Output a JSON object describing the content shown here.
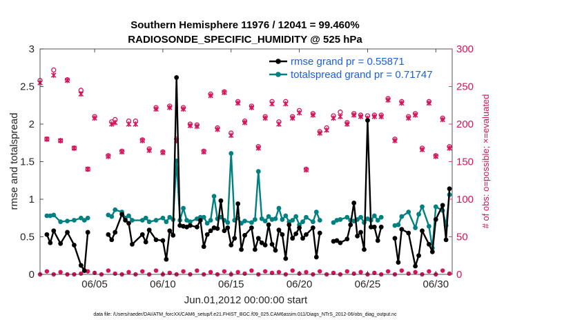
{
  "chart_data": {
    "type": "line",
    "title": "Southern Hemisphere 11976 / 12041 = 99.460%",
    "subtitle": "RADIOSONDE_SPECIFIC_HUMIDITY @ 525 hPa",
    "xlabel": "Jun.01,2012 00:00:00 start",
    "ylabel": "rmse and totalspread",
    "y2label": "# of obs: o=possible; ×=evaluated",
    "footer": "data file: /Users/raeder/DAI/ATM_forcXX/CAM6_setup/f.e21.FHIST_BGC.f09_025.CAM6assim.011/Diags_NTrS_2012-06/obs_diag_output.nc",
    "xlim": [
      1,
      31.2
    ],
    "ylim": [
      0,
      3
    ],
    "y2lim": [
      0,
      300
    ],
    "xticks": [
      5,
      10,
      15,
      20,
      25,
      30
    ],
    "xtick_labels": [
      "06/05",
      "06/10",
      "06/15",
      "06/20",
      "06/25",
      "06/30"
    ],
    "yticks": [
      0,
      0.5,
      1,
      1.5,
      2,
      2.5,
      3
    ],
    "ytick_labels": [
      "0",
      "0.5",
      "1",
      "1.5",
      "2",
      "2.5",
      "3"
    ],
    "y2ticks": [
      0,
      50,
      100,
      150,
      200,
      250,
      300
    ],
    "y2tick_labels": [
      "0",
      "50",
      "100",
      "150",
      "200",
      "250",
      "300"
    ],
    "legend_position": "top-right",
    "series": [
      {
        "name": "rmse",
        "legend": "rmse grand pr = 0.55871",
        "color": "#000000",
        "x": [
          1.5,
          1.75,
          2.0,
          2.5,
          3.0,
          3.5,
          4.0,
          4.25,
          4.5,
          6.0,
          6.25,
          6.5,
          7.0,
          7.25,
          7.5,
          7.75,
          8.5,
          8.75,
          9.0,
          9.5,
          10.0,
          10.25,
          10.5,
          10.75,
          11.0,
          11.25,
          11.5,
          11.75,
          12.0,
          12.5,
          12.75,
          13.0,
          13.25,
          13.5,
          13.75,
          14.0,
          14.25,
          14.5,
          14.75,
          15.0,
          15.25,
          15.5,
          15.75,
          16.0,
          16.5,
          16.75,
          17.0,
          17.25,
          17.5,
          17.75,
          18.0,
          18.25,
          18.5,
          18.75,
          19.0,
          19.25,
          19.5,
          19.75,
          20.0,
          20.25,
          20.5,
          21.0,
          21.25,
          21.5,
          22.5,
          22.75,
          23.0,
          23.5,
          23.75,
          24.0,
          24.25,
          24.5,
          24.75,
          25.0,
          25.25,
          25.5,
          25.75,
          26.0,
          27.0,
          27.25,
          27.5,
          28.0,
          28.5,
          28.75,
          29.0,
          29.5,
          29.75,
          30.0,
          30.5,
          30.75,
          31.0
        ],
        "y": [
          0.53,
          0.42,
          0.58,
          0.41,
          0.56,
          0.39,
          0.12,
          0.05,
          0.56,
          0.53,
          0.46,
          0.56,
          0.8,
          0.72,
          0.68,
          0.4,
          0.53,
          0.43,
          0.59,
          0.46,
          0.45,
          0.2,
          0.58,
          0.52,
          2.62,
          0.65,
          0.64,
          0.63,
          0.65,
          0.63,
          0.72,
          0.37,
          0.53,
          0.58,
          0.62,
          0.61,
          0.98,
          0.58,
          0.62,
          0.39,
          0.48,
          0.94,
          0.33,
          0.52,
          0.62,
          0.33,
          0.48,
          0.42,
          0.39,
          0.66,
          0.4,
          0.32,
          0.59,
          0.53,
          0.21,
          0.66,
          0.48,
          0.54,
          0.62,
          0.48,
          0.53,
          0.62,
          0.23,
          0.55,
          0.44,
          0.45,
          0.42,
          0.47,
          0.66,
          0.95,
          0.51,
          0.56,
          0.33,
          2.05,
          0.63,
          0.63,
          0.45,
          0.63,
          0.48,
          0.16,
          0.6,
          0.55,
          0.11,
          0.25,
          0.58,
          0.4,
          0.3,
          0.73,
          0.92,
          0.46,
          1.14
        ]
      },
      {
        "name": "totalspread",
        "legend": "totalspread grand pr = 0.71747",
        "color": "#008080",
        "x": [
          1.5,
          1.75,
          2.0,
          2.5,
          3.0,
          3.5,
          4.0,
          4.25,
          4.5,
          6.0,
          6.25,
          6.5,
          7.0,
          7.25,
          7.5,
          7.75,
          8.5,
          8.75,
          9.0,
          9.5,
          10.0,
          10.25,
          10.5,
          10.75,
          11.0,
          11.25,
          11.5,
          11.75,
          12.0,
          12.5,
          12.75,
          13.0,
          13.25,
          13.5,
          13.75,
          14.0,
          14.25,
          14.5,
          14.75,
          15.0,
          15.25,
          15.5,
          15.75,
          16.0,
          16.5,
          16.75,
          17.0,
          17.25,
          17.5,
          17.75,
          18.0,
          18.25,
          18.5,
          18.75,
          19.0,
          19.25,
          19.5,
          19.75,
          20.0,
          20.25,
          20.5,
          21.0,
          21.25,
          21.5,
          22.5,
          22.75,
          23.0,
          23.5,
          23.75,
          24.0,
          24.25,
          24.5,
          24.75,
          25.0,
          25.25,
          25.5,
          25.75,
          26.0,
          27.0,
          27.25,
          27.5,
          28.0,
          28.5,
          28.75,
          29.0,
          29.5,
          29.75,
          30.0,
          30.5,
          30.75,
          31.0
        ],
        "y": [
          0.78,
          0.78,
          0.79,
          0.7,
          0.71,
          0.72,
          0.75,
          0.72,
          0.75,
          0.79,
          0.77,
          0.86,
          0.83,
          0.75,
          0.78,
          0.72,
          0.72,
          0.75,
          0.7,
          0.72,
          0.75,
          0.7,
          0.76,
          0.73,
          1.51,
          0.72,
          0.88,
          0.72,
          0.7,
          0.74,
          0.76,
          0.76,
          0.68,
          0.72,
          1.04,
          0.74,
          0.76,
          0.72,
          0.69,
          1.61,
          0.72,
          0.75,
          0.68,
          0.71,
          0.69,
          0.73,
          1.37,
          0.74,
          0.71,
          0.77,
          0.73,
          0.74,
          0.88,
          0.73,
          0.78,
          0.7,
          0.72,
          0.77,
          0.66,
          0.7,
          0.76,
          0.7,
          0.83,
          0.72,
          0.69,
          0.72,
          0.73,
          0.76,
          0.72,
          0.71,
          0.73,
          0.76,
          0.69,
          0.74,
          0.72,
          0.78,
          0.72,
          0.76,
          0.65,
          0.66,
          0.77,
          0.83,
          0.62,
          0.8,
          0.9,
          0.64,
          0.35,
          0.9,
          0.85,
          0.65,
          1.06
        ]
      },
      {
        "name": "obs possible",
        "color": "#d4145a",
        "axis": "right",
        "x": [
          1,
          1.5,
          2,
          2.5,
          3,
          3.5,
          4,
          4.5,
          5,
          6,
          6.25,
          6.5,
          7,
          7.5,
          8,
          8.5,
          9,
          9.5,
          10,
          10.5,
          11,
          11.5,
          12,
          12.5,
          13,
          13.5,
          14,
          14.5,
          15,
          15.5,
          16,
          16.5,
          17,
          17.5,
          18,
          18.5,
          19,
          19.5,
          20,
          20.5,
          21,
          21.5,
          22,
          22.5,
          23,
          23.5,
          24,
          24.5,
          25,
          25.5,
          26,
          26.5,
          27,
          27.5,
          28,
          28.5,
          29,
          29.5,
          30,
          30.5,
          31
        ],
        "y": [
          258,
          180,
          272,
          178,
          259,
          168,
          245,
          140,
          210,
          158,
          203,
          206,
          164,
          204,
          204,
          179,
          167,
          222,
          163,
          224,
          180,
          222,
          200,
          199,
          164,
          240,
          195,
          243,
          188,
          230,
          204,
          224,
          170,
          210,
          230,
          203,
          230,
          210,
          218,
          140,
          214,
          190,
          195,
          211,
          216,
          202,
          214,
          212,
          211,
          212,
          212,
          234,
          180,
          230,
          210,
          214,
          168,
          230,
          158,
          208,
          170
        ]
      },
      {
        "name": "obs evaluated",
        "color": "#d4145a",
        "axis": "right",
        "x": [
          1,
          1.5,
          2,
          2.5,
          3,
          3.5,
          4,
          4.5,
          5,
          6,
          6.25,
          6.5,
          7,
          7.5,
          8,
          8.5,
          9,
          9.5,
          10,
          10.5,
          11,
          11.5,
          12,
          12.5,
          13,
          13.5,
          14,
          14.5,
          15,
          15.5,
          16,
          16.5,
          17,
          17.5,
          18,
          18.5,
          19,
          19.5,
          20,
          20.5,
          21,
          21.5,
          22,
          22.5,
          23,
          23.5,
          24,
          24.5,
          25,
          25.5,
          26,
          26.5,
          27,
          27.5,
          28,
          28.5,
          29,
          29.5,
          30,
          30.5,
          31
        ],
        "y": [
          255,
          180,
          265,
          178,
          258,
          168,
          240,
          140,
          208,
          157,
          200,
          202,
          163,
          200,
          200,
          178,
          165,
          220,
          162,
          222,
          178,
          220,
          198,
          197,
          163,
          238,
          193,
          242,
          185,
          228,
          202,
          222,
          168,
          208,
          227,
          200,
          227,
          208,
          215,
          139,
          212,
          188,
          192,
          208,
          210,
          200,
          212,
          210,
          208,
          210,
          210,
          232,
          178,
          228,
          208,
          212,
          166,
          228,
          157,
          206,
          168
        ]
      },
      {
        "name": "obs near zero",
        "color": "#d4145a",
        "axis": "right",
        "x": [
          1,
          1.5,
          2,
          2.5,
          3,
          3.5,
          4,
          4.5,
          5,
          5.5,
          6,
          6.5,
          7,
          7.5,
          8,
          8.5,
          9,
          9.5,
          10,
          10.5,
          11,
          11.5,
          12,
          12.5,
          13,
          13.5,
          14,
          14.5,
          15,
          15.5,
          16,
          16.5,
          17,
          17.5,
          18,
          18.5,
          19,
          19.5,
          20,
          20.5,
          21,
          21.5,
          22,
          22.5,
          23,
          23.5,
          24,
          24.5,
          25,
          25.5,
          26,
          26.5,
          27,
          27.5,
          28,
          28.5,
          29,
          29.5,
          30,
          30.5,
          31
        ],
        "y": [
          0,
          4,
          0,
          3,
          0,
          0,
          1,
          4,
          2,
          0,
          5,
          1,
          0,
          3,
          0,
          4,
          0,
          5,
          0,
          2,
          0,
          4,
          0,
          5,
          0,
          3,
          0,
          4,
          0,
          3,
          1,
          5,
          0,
          4,
          2,
          3,
          0,
          5,
          1,
          3,
          0,
          4,
          0,
          2,
          0,
          4,
          1,
          3,
          0,
          2,
          0,
          4,
          0,
          5,
          1,
          3,
          0,
          4,
          0,
          5,
          1
        ]
      }
    ]
  }
}
